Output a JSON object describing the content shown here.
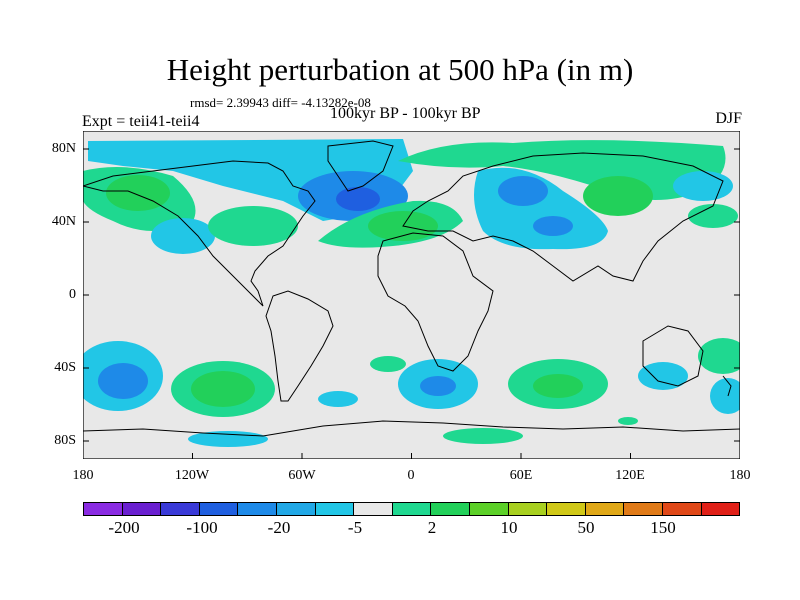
{
  "title": "Height perturbation at 500 hPa (in m)",
  "rmsd_text": "rmsd= 2.39943 diff= -4.13282e-08",
  "subtitle": "100kyr BP - 100kyr BP",
  "experiment": "Expt = teii41-teii4",
  "season": "DJF",
  "lat_labels": [
    "80N",
    "40N",
    "0",
    "40S",
    "80S"
  ],
  "lon_labels": [
    "180",
    "120W",
    "60W",
    "0",
    "60E",
    "120E",
    "180"
  ],
  "colorbar": {
    "colors": [
      "#8a2be2",
      "#6a1fd0",
      "#3a3ad8",
      "#1f5fe0",
      "#1e8ae8",
      "#21a8e6",
      "#22c6e6",
      "#e8e8e8",
      "#1fd890",
      "#22d05a",
      "#5cd028",
      "#a8d020",
      "#d0c818",
      "#e0a818",
      "#e07a18",
      "#e04818",
      "#e02018"
    ],
    "labels": [
      "-200",
      "-100",
      "-20",
      "-5",
      "2",
      "10",
      "50",
      "150"
    ],
    "neutral_color": "#e8e8e8"
  }
}
